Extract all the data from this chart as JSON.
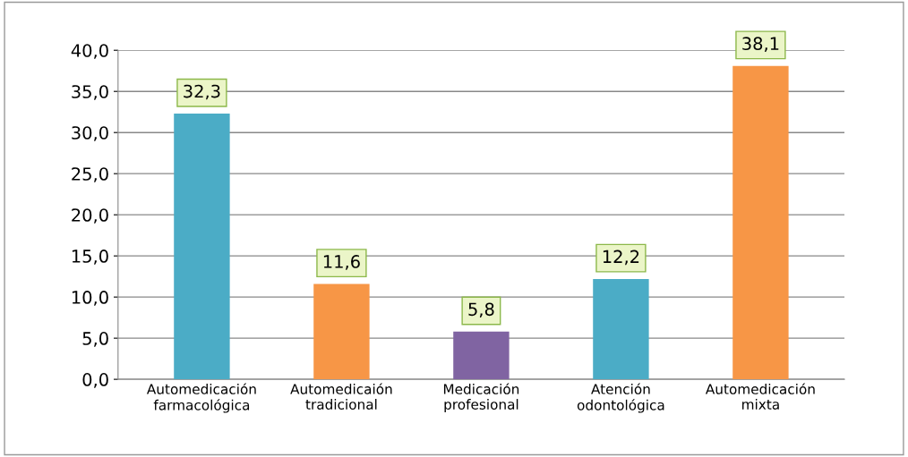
{
  "chart_data": {
    "type": "bar",
    "categories": [
      "Automedicación\nfarmacológica",
      "Automedicaión\ntradicional",
      "Medicación\nprofesional",
      "Atención\nodontológica",
      "Automedicación\nmixta"
    ],
    "values": [
      32.3,
      11.6,
      5.8,
      12.2,
      38.1
    ],
    "colors": [
      "#4bacc6",
      "#f79646",
      "#8064a2",
      "#4bacc6",
      "#f79646"
    ],
    "value_labels": [
      "32,3",
      "11,6",
      "5,8",
      "12,2",
      "38,1"
    ],
    "ylim": [
      0,
      40
    ],
    "yticks": [
      {
        "value": 0,
        "label": "0,0"
      },
      {
        "value": 5,
        "label": "5,0"
      },
      {
        "value": 10,
        "label": "10,0"
      },
      {
        "value": 15,
        "label": "15,0"
      },
      {
        "value": 20,
        "label": "20,0"
      },
      {
        "value": 25,
        "label": "25,0"
      },
      {
        "value": 30,
        "label": "30,0"
      },
      {
        "value": 35,
        "label": "35,0"
      },
      {
        "value": 40,
        "label": "40,0"
      }
    ],
    "grid": "y"
  }
}
